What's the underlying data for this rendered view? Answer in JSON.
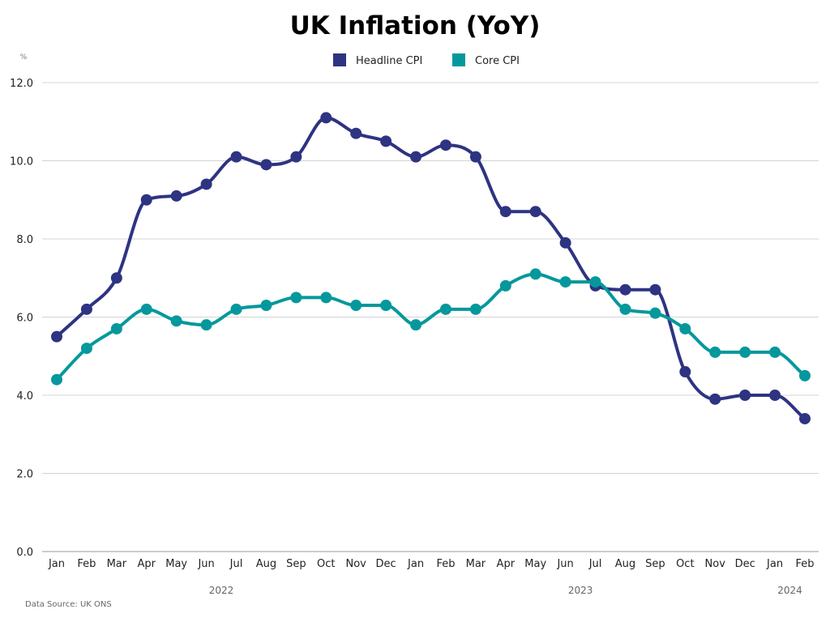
{
  "chart_data": {
    "type": "line",
    "title": "UK  Inflation (YoY)",
    "ylabel": "%",
    "xlabel": "",
    "ylim": [
      0,
      12
    ],
    "yticks": [
      "0.0",
      "2.0",
      "4.0",
      "6.0",
      "8.0",
      "10.0",
      "12.0"
    ],
    "grid": true,
    "legend_position": "top-center",
    "categories": [
      "Jan",
      "Feb",
      "Mar",
      "Apr",
      "May",
      "Jun",
      "Jul",
      "Aug",
      "Sep",
      "Oct",
      "Nov",
      "Dec",
      "Jan",
      "Feb",
      "Mar",
      "Apr",
      "May",
      "Jun",
      "Jul",
      "Aug",
      "Sep",
      "Oct",
      "Nov",
      "Dec",
      "Jan",
      "Feb"
    ],
    "year_labels": [
      {
        "label": "2022",
        "center_month_index": 5.5
      },
      {
        "label": "2023",
        "center_month_index": 17.5
      },
      {
        "label": "2024",
        "center_month_index": 24.5
      }
    ],
    "series": [
      {
        "name": "Headline CPI",
        "color": "#2e3382",
        "values": [
          5.5,
          6.2,
          7.0,
          9.0,
          9.1,
          9.4,
          10.1,
          9.9,
          10.1,
          11.1,
          10.7,
          10.5,
          10.1,
          10.4,
          10.1,
          8.7,
          8.7,
          7.9,
          6.8,
          6.7,
          6.7,
          4.6,
          3.9,
          4.0,
          4.0,
          3.4
        ]
      },
      {
        "name": "Core CPI",
        "color": "#04989c",
        "values": [
          4.4,
          5.2,
          5.7,
          6.2,
          5.9,
          5.8,
          6.2,
          6.3,
          6.5,
          6.5,
          6.3,
          6.3,
          5.8,
          6.2,
          6.2,
          6.8,
          7.1,
          6.9,
          6.9,
          6.2,
          6.1,
          5.7,
          5.1,
          5.1,
          5.1,
          4.5
        ]
      }
    ],
    "source": "Data Source: UK ONS"
  }
}
